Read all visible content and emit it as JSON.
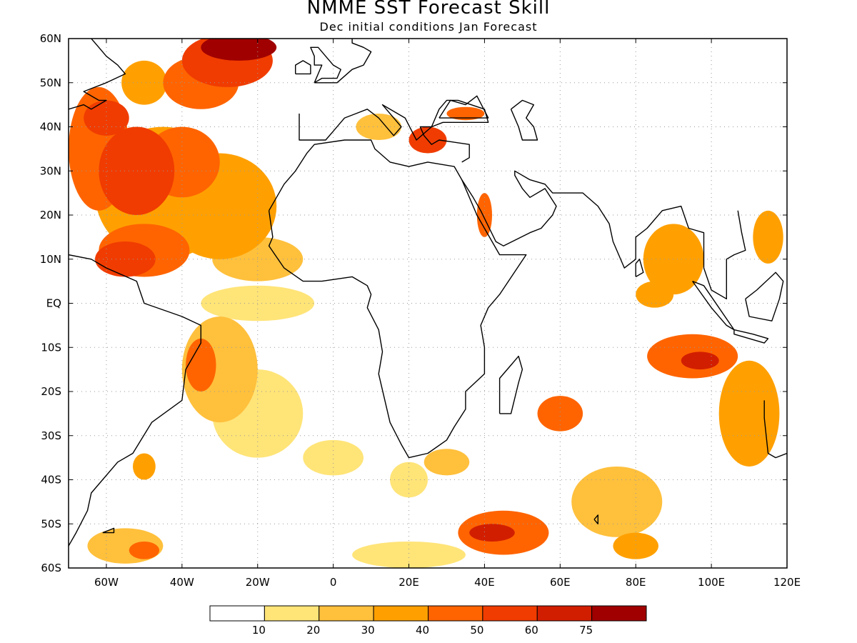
{
  "title": "NMME SST Forecast Skill",
  "subtitle": "Dec initial conditions  Jan Forecast",
  "map": {
    "lon_range": [
      -70,
      120
    ],
    "lat_range": [
      -60,
      60
    ],
    "grid": true,
    "lon_ticks": [
      {
        "lon": -60,
        "label": "60W"
      },
      {
        "lon": -40,
        "label": "40W"
      },
      {
        "lon": -20,
        "label": "20W"
      },
      {
        "lon": 0,
        "label": "0"
      },
      {
        "lon": 20,
        "label": "20E"
      },
      {
        "lon": 40,
        "label": "40E"
      },
      {
        "lon": 60,
        "label": "60E"
      },
      {
        "lon": 80,
        "label": "80E"
      },
      {
        "lon": 100,
        "label": "100E"
      },
      {
        "lon": 120,
        "label": "120E"
      }
    ],
    "lat_ticks": [
      {
        "lat": 60,
        "label": "60N"
      },
      {
        "lat": 50,
        "label": "50N"
      },
      {
        "lat": 40,
        "label": "40N"
      },
      {
        "lat": 30,
        "label": "30N"
      },
      {
        "lat": 20,
        "label": "20N"
      },
      {
        "lat": 10,
        "label": "10N"
      },
      {
        "lat": 0,
        "label": "EQ"
      },
      {
        "lat": -10,
        "label": "10S"
      },
      {
        "lat": -20,
        "label": "20S"
      },
      {
        "lat": -30,
        "label": "30S"
      },
      {
        "lat": -40,
        "label": "40S"
      },
      {
        "lat": -50,
        "label": "50S"
      },
      {
        "lat": -60,
        "label": "60S"
      }
    ]
  },
  "legend": {
    "colors": [
      "#ffffff",
      "#ffe478",
      "#ffc03c",
      "#ffa000",
      "#ff6400",
      "#f03c00",
      "#d21e00",
      "#a00000"
    ],
    "labels": [
      "10",
      "20",
      "30",
      "40",
      "50",
      "60",
      "75"
    ]
  },
  "skill_regions": [
    {
      "lon": -62,
      "lat": 35,
      "rx": 8,
      "ry": 14,
      "level": 4
    },
    {
      "lon": -52,
      "lat": 30,
      "rx": 10,
      "ry": 10,
      "level": 5
    },
    {
      "lon": -60,
      "lat": 42,
      "rx": 6,
      "ry": 4,
      "level": 5
    },
    {
      "lon": -45,
      "lat": 25,
      "rx": 18,
      "ry": 15,
      "level": 3
    },
    {
      "lon": -40,
      "lat": 32,
      "rx": 10,
      "ry": 8,
      "level": 4
    },
    {
      "lon": -50,
      "lat": 12,
      "rx": 12,
      "ry": 6,
      "level": 4
    },
    {
      "lon": -55,
      "lat": 10,
      "rx": 8,
      "ry": 4,
      "level": 5
    },
    {
      "lon": -30,
      "lat": 22,
      "rx": 15,
      "ry": 12,
      "level": 3
    },
    {
      "lon": -28,
      "lat": 55,
      "rx": 12,
      "ry": 6,
      "level": 5
    },
    {
      "lon": -25,
      "lat": 58,
      "rx": 10,
      "ry": 3,
      "level": 7
    },
    {
      "lon": -35,
      "lat": 50,
      "rx": 10,
      "ry": 6,
      "level": 4
    },
    {
      "lon": -50,
      "lat": 50,
      "rx": 6,
      "ry": 5,
      "level": 3
    },
    {
      "lon": -20,
      "lat": 10,
      "rx": 12,
      "ry": 5,
      "level": 2
    },
    {
      "lon": -20,
      "lat": 0,
      "rx": 15,
      "ry": 4,
      "level": 1
    },
    {
      "lon": -30,
      "lat": -15,
      "rx": 10,
      "ry": 12,
      "level": 2
    },
    {
      "lon": -35,
      "lat": -14,
      "rx": 4,
      "ry": 6,
      "level": 4
    },
    {
      "lon": -20,
      "lat": -25,
      "rx": 12,
      "ry": 10,
      "level": 1
    },
    {
      "lon": 25,
      "lat": 37,
      "rx": 5,
      "ry": 3,
      "level": 5
    },
    {
      "lon": 35,
      "lat": 43,
      "rx": 5,
      "ry": 1.5,
      "level": 4
    },
    {
      "lon": 12,
      "lat": 40,
      "rx": 6,
      "ry": 3,
      "level": 2
    },
    {
      "lon": 40,
      "lat": 20,
      "rx": 2,
      "ry": 5,
      "level": 4
    },
    {
      "lon": 90,
      "lat": 10,
      "rx": 8,
      "ry": 8,
      "level": 3
    },
    {
      "lon": 85,
      "lat": 2,
      "rx": 5,
      "ry": 3,
      "level": 3
    },
    {
      "lon": 95,
      "lat": -12,
      "rx": 12,
      "ry": 5,
      "level": 4
    },
    {
      "lon": 97,
      "lat": -13,
      "rx": 5,
      "ry": 2,
      "level": 6
    },
    {
      "lon": 110,
      "lat": -25,
      "rx": 8,
      "ry": 12,
      "level": 3
    },
    {
      "lon": 115,
      "lat": 15,
      "rx": 4,
      "ry": 6,
      "level": 3
    },
    {
      "lon": 60,
      "lat": -25,
      "rx": 6,
      "ry": 4,
      "level": 4
    },
    {
      "lon": 45,
      "lat": -52,
      "rx": 12,
      "ry": 5,
      "level": 4
    },
    {
      "lon": 42,
      "lat": -52,
      "rx": 6,
      "ry": 2,
      "level": 6
    },
    {
      "lon": 75,
      "lat": -45,
      "rx": 12,
      "ry": 8,
      "level": 2
    },
    {
      "lon": 20,
      "lat": -40,
      "rx": 5,
      "ry": 4,
      "level": 1
    },
    {
      "lon": 30,
      "lat": -36,
      "rx": 6,
      "ry": 3,
      "level": 2
    },
    {
      "lon": -55,
      "lat": -55,
      "rx": 10,
      "ry": 4,
      "level": 2
    },
    {
      "lon": -50,
      "lat": -56,
      "rx": 4,
      "ry": 2,
      "level": 4
    },
    {
      "lon": -50,
      "lat": -37,
      "rx": 3,
      "ry": 3,
      "level": 3
    },
    {
      "lon": 0,
      "lat": -35,
      "rx": 8,
      "ry": 4,
      "level": 1
    },
    {
      "lon": 20,
      "lat": -57,
      "rx": 15,
      "ry": 3,
      "level": 1
    },
    {
      "lon": 80,
      "lat": -55,
      "rx": 6,
      "ry": 3,
      "level": 3
    }
  ],
  "coastlines": {
    "africa": [
      [
        -17,
        21
      ],
      [
        -16,
        15
      ],
      [
        -17,
        13
      ],
      [
        -13,
        8
      ],
      [
        -8,
        5
      ],
      [
        -3,
        5
      ],
      [
        5,
        6
      ],
      [
        9,
        4
      ],
      [
        10,
        2
      ],
      [
        9,
        -1
      ],
      [
        12,
        -6
      ],
      [
        13,
        -11
      ],
      [
        12,
        -16
      ],
      [
        15,
        -27
      ],
      [
        18,
        -32
      ],
      [
        20,
        -35
      ],
      [
        25,
        -34
      ],
      [
        30,
        -31
      ],
      [
        32,
        -28
      ],
      [
        35,
        -24
      ],
      [
        35,
        -20
      ],
      [
        40,
        -16
      ],
      [
        40,
        -10
      ],
      [
        39,
        -5
      ],
      [
        41,
        -1
      ],
      [
        44,
        2
      ],
      [
        51,
        11
      ],
      [
        44,
        11
      ],
      [
        42,
        14
      ],
      [
        38,
        20
      ],
      [
        34,
        28
      ],
      [
        32,
        31
      ],
      [
        25,
        32
      ],
      [
        20,
        31
      ],
      [
        15,
        32
      ],
      [
        11,
        35
      ],
      [
        10,
        37
      ],
      [
        3,
        37
      ],
      [
        -5,
        36
      ],
      [
        -7,
        34
      ],
      [
        -10,
        30
      ],
      [
        -13,
        27
      ],
      [
        -17,
        21
      ]
    ],
    "south_america": [
      [
        -70,
        -55
      ],
      [
        -68,
        -52
      ],
      [
        -65,
        -47
      ],
      [
        -64,
        -43
      ],
      [
        -57,
        -36
      ],
      [
        -53,
        -34
      ],
      [
        -48,
        -27
      ],
      [
        -40,
        -22
      ],
      [
        -39,
        -15
      ],
      [
        -35,
        -9
      ],
      [
        -35,
        -5
      ],
      [
        -40,
        -3
      ],
      [
        -50,
        0
      ],
      [
        -52,
        5
      ],
      [
        -60,
        8
      ],
      [
        -64,
        10
      ],
      [
        -70,
        11
      ]
    ],
    "north_america": [
      [
        -70,
        44
      ],
      [
        -66,
        45
      ],
      [
        -64,
        44
      ],
      [
        -60,
        46
      ],
      [
        -62,
        46
      ],
      [
        -66,
        48
      ],
      [
        -60,
        50
      ],
      [
        -55,
        52
      ],
      [
        -57,
        54
      ],
      [
        -60,
        56
      ],
      [
        -62,
        58
      ],
      [
        -64,
        60
      ]
    ],
    "europe": [
      [
        -9,
        43
      ],
      [
        -9,
        39
      ],
      [
        -9,
        37
      ],
      [
        -6,
        37
      ],
      [
        -2,
        37
      ],
      [
        0,
        39
      ],
      [
        3,
        42
      ],
      [
        6,
        43
      ],
      [
        9,
        44
      ],
      [
        12,
        42
      ],
      [
        16,
        38
      ],
      [
        18,
        40
      ],
      [
        13,
        45
      ],
      [
        19,
        42
      ],
      [
        22,
        37
      ],
      [
        26,
        40
      ],
      [
        29,
        41
      ],
      [
        36,
        41
      ],
      [
        41,
        41
      ],
      [
        40,
        44
      ],
      [
        33,
        46
      ],
      [
        30,
        46
      ],
      [
        28,
        44
      ],
      [
        26,
        40
      ],
      [
        23,
        40
      ],
      [
        24,
        38
      ],
      [
        26,
        36
      ],
      [
        28,
        37
      ],
      [
        36,
        36
      ],
      [
        36,
        33
      ],
      [
        34,
        32
      ]
    ],
    "arabia": [
      [
        34,
        28
      ],
      [
        37,
        24
      ],
      [
        39,
        21
      ],
      [
        43,
        14
      ],
      [
        45,
        13
      ],
      [
        52,
        16
      ],
      [
        55,
        17
      ],
      [
        58,
        20
      ],
      [
        59,
        22
      ],
      [
        56,
        26
      ],
      [
        52,
        24
      ],
      [
        50,
        26
      ],
      [
        48,
        29
      ],
      [
        48,
        30
      ],
      [
        52,
        28
      ],
      [
        56,
        27
      ],
      [
        58,
        25
      ],
      [
        62,
        25
      ],
      [
        66,
        25
      ],
      [
        70,
        22
      ],
      [
        73,
        18
      ],
      [
        74,
        14
      ],
      [
        77,
        8
      ],
      [
        80,
        10
      ],
      [
        80,
        15
      ],
      [
        83,
        17
      ],
      [
        87,
        21
      ],
      [
        92,
        22
      ],
      [
        94,
        17
      ],
      [
        98,
        16
      ],
      [
        98,
        8
      ],
      [
        100,
        3
      ],
      [
        104,
        1
      ],
      [
        104,
        10
      ],
      [
        106,
        11
      ],
      [
        109,
        12
      ],
      [
        108,
        16
      ],
      [
        107,
        21
      ]
    ],
    "europe_north": [
      [
        -5,
        50
      ],
      [
        1,
        50
      ],
      [
        5,
        53
      ],
      [
        8,
        54
      ],
      [
        10,
        57
      ],
      [
        8,
        58
      ],
      [
        5,
        59
      ],
      [
        5,
        60
      ]
    ],
    "uk": [
      [
        -5,
        50
      ],
      [
        -3,
        51
      ],
      [
        1,
        51
      ],
      [
        2,
        53
      ],
      [
        0,
        54
      ],
      [
        -2,
        56
      ],
      [
        -4,
        58
      ],
      [
        -6,
        58
      ],
      [
        -5,
        56
      ],
      [
        -5,
        54
      ],
      [
        -3,
        54
      ],
      [
        -4,
        52
      ],
      [
        -5,
        50
      ]
    ],
    "ireland": [
      [
        -10,
        52
      ],
      [
        -6,
        52
      ],
      [
        -6,
        54
      ],
      [
        -8,
        55
      ],
      [
        -10,
        54
      ],
      [
        -10,
        52
      ]
    ],
    "madagascar": [
      [
        44,
        -25
      ],
      [
        47,
        -25
      ],
      [
        49,
        -18
      ],
      [
        50,
        -15
      ],
      [
        49,
        -12
      ],
      [
        47,
        -14
      ],
      [
        44,
        -17
      ],
      [
        44,
        -25
      ]
    ],
    "australia": [
      [
        114,
        -22
      ],
      [
        114,
        -26
      ],
      [
        115,
        -34
      ],
      [
        117,
        -35
      ],
      [
        120,
        -34
      ]
    ],
    "sumatra": [
      [
        95,
        5
      ],
      [
        98,
        4
      ],
      [
        106,
        -6
      ],
      [
        104,
        -5
      ],
      [
        100,
        -1
      ],
      [
        95,
        5
      ]
    ],
    "borneo": [
      [
        109,
        1
      ],
      [
        112,
        3
      ],
      [
        117,
        7
      ],
      [
        119,
        5
      ],
      [
        118,
        1
      ],
      [
        116,
        -4
      ],
      [
        110,
        -3
      ],
      [
        109,
        1
      ]
    ],
    "java": [
      [
        106,
        -6
      ],
      [
        111,
        -7
      ],
      [
        115,
        -8
      ],
      [
        114,
        -9
      ],
      [
        106,
        -7
      ],
      [
        106,
        -6
      ]
    ],
    "srilanka": [
      [
        80,
        6
      ],
      [
        82,
        7
      ],
      [
        81,
        10
      ],
      [
        80,
        9
      ],
      [
        80,
        6
      ]
    ],
    "caspian": [
      [
        47,
        44
      ],
      [
        50,
        46
      ],
      [
        53,
        45
      ],
      [
        51,
        42
      ],
      [
        53,
        40
      ],
      [
        54,
        37
      ],
      [
        50,
        37
      ],
      [
        49,
        40
      ],
      [
        47,
        44
      ]
    ],
    "black_sea": [
      [
        28,
        42
      ],
      [
        31,
        46
      ],
      [
        35,
        45
      ],
      [
        38,
        47
      ],
      [
        41,
        42
      ],
      [
        35,
        42
      ],
      [
        28,
        42
      ]
    ],
    "kerguelen": [
      [
        69,
        -49
      ],
      [
        70,
        -48
      ],
      [
        70,
        -50
      ],
      [
        69,
        -49
      ]
    ],
    "falklands": [
      [
        -61,
        -52
      ],
      [
        -58,
        -51
      ],
      [
        -58,
        -52
      ],
      [
        -61,
        -52
      ]
    ]
  }
}
